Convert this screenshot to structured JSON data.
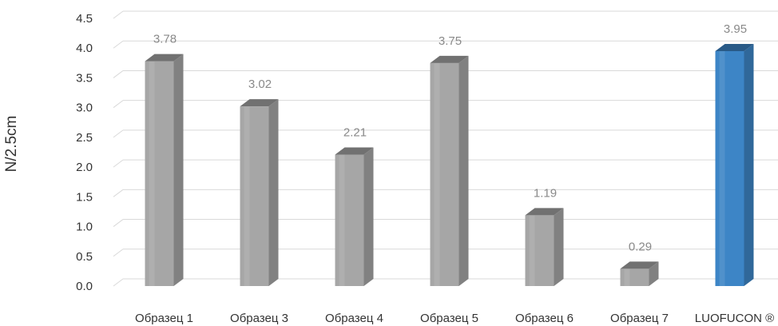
{
  "chart_data": {
    "type": "bar",
    "title": "",
    "xlabel": "",
    "ylabel": "N/2.5cm",
    "ylim": [
      0,
      4.5
    ],
    "y_ticks": [
      "0.0",
      "0.5",
      "1.0",
      "1.5",
      "2.0",
      "2.5",
      "3.0",
      "3.5",
      "4.0",
      "4.5"
    ],
    "grid": true,
    "style": "3d-columns",
    "categories": [
      "Образец 1",
      "Образец 3",
      "Образец 4",
      "Образец 5",
      "Образец 6",
      "Образец 7",
      "LUOFUCON ®"
    ],
    "values": [
      3.78,
      3.02,
      2.21,
      3.75,
      1.19,
      0.29,
      3.95
    ],
    "value_labels": [
      "3.78",
      "3.02",
      "2.21",
      "3.75",
      "1.19",
      "0.29",
      "3.95"
    ],
    "colors": {
      "default_bar": "#a6a6a6",
      "highlight_bar": "#3d85c6",
      "highlight_label": "#2f82c8",
      "grid": "#d9d9d9",
      "text": "#333333",
      "value_label": "#8a8a8a"
    },
    "highlight_index": 6
  }
}
